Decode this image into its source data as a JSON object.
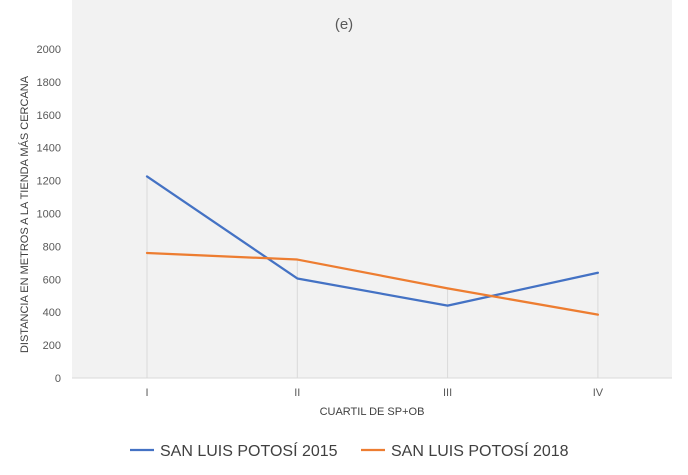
{
  "chart_data": {
    "type": "line",
    "title": "(e)",
    "xlabel": "CUARTIL DE SP+OB",
    "ylabel": "DISTANCIA EN METROS A LA TIENDA MÁS CERCANA",
    "categories": [
      "I",
      "II",
      "III",
      "IV"
    ],
    "ylim": [
      0,
      2000
    ],
    "yticks": [
      "0",
      "200",
      "400",
      "600",
      "800",
      "1000",
      "1200",
      "1400",
      "1600",
      "1800",
      "2000"
    ],
    "grid": "vertical drop lines at categories",
    "legend": "bottom",
    "series": [
      {
        "name": "SAN LUIS POTOSÍ 2015",
        "color": "#4472C4",
        "values": [
          1225,
          605,
          440,
          640
        ]
      },
      {
        "name": "SAN LUIS POTOSÍ 2018",
        "color": "#ED7D31",
        "values": [
          760,
          720,
          545,
          385
        ]
      }
    ],
    "plot_background": "#F2F2F2",
    "gridline_color": "#D9D9D9"
  }
}
